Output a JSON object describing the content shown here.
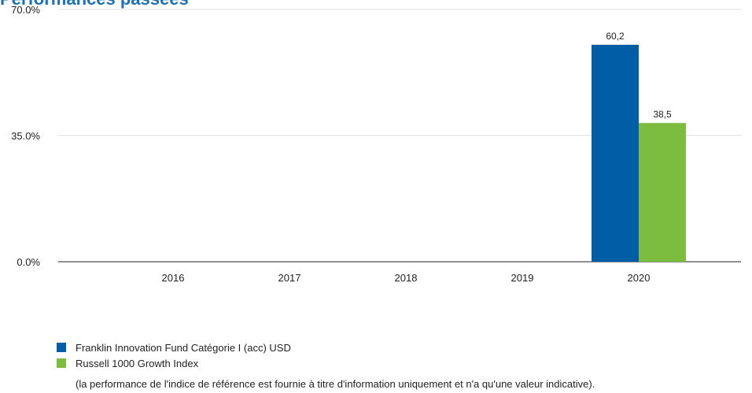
{
  "header": {
    "title": "Performances passées"
  },
  "chart_data": {
    "type": "bar",
    "categories": [
      "2016",
      "2017",
      "2018",
      "2019",
      "2020"
    ],
    "y_ticks": [
      "70.0%",
      "35.0%",
      "0.0%"
    ],
    "ylim": [
      0,
      70
    ],
    "grid": true,
    "legend_position": "bottom-left",
    "series": [
      {
        "name": "Franklin Innovation Fund Catégorie I (acc) USD",
        "color": "#005da6",
        "values": [
          null,
          null,
          null,
          null,
          60.2
        ],
        "labels": [
          "",
          "",
          "",
          "",
          "60,2"
        ]
      },
      {
        "name": "Russell 1000 Growth Index",
        "color": "#7cbd3f",
        "values": [
          null,
          null,
          null,
          null,
          38.5
        ],
        "labels": [
          "",
          "",
          "",
          "",
          "38,5"
        ]
      }
    ]
  },
  "footnote": "(la performance de l'indice de référence est fournie à titre d'information uniquement et n'a qu'une valeur indicative)."
}
